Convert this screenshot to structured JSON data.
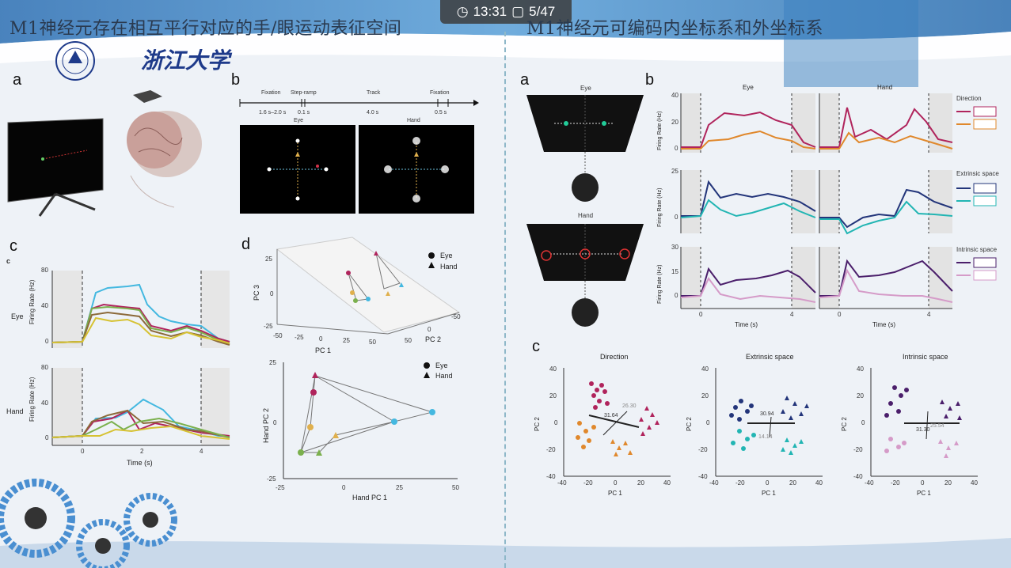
{
  "status_bar": {
    "time": "13:31",
    "page": "5/47"
  },
  "left": {
    "heading": "M1神经元存在相互平行对应的手/眼运动表征空间",
    "panel_a": "a",
    "panel_b": "b",
    "panel_c": "c",
    "panel_c_small": "c",
    "panel_d": "d",
    "timeline": {
      "labels": [
        "Fixation",
        "Step-ramp",
        "Track",
        "Fixation"
      ],
      "durations": [
        "1.6 s–2.0 s",
        "0.1 s",
        "4.0 s",
        "0.5 s"
      ],
      "eye": "Eye",
      "hand": "Hand"
    },
    "plot_eye": {
      "ylabel": "Firing Rate (Hz)",
      "row": "Eye",
      "yticks": [
        "80",
        "40",
        "0"
      ]
    },
    "plot_hand": {
      "ylabel": "Firing Rate (Hz)",
      "row": "Hand",
      "yticks": [
        "80",
        "40",
        "0"
      ],
      "xticks": [
        "0",
        "2",
        "4"
      ],
      "xlabel": "Time (s)"
    },
    "pca3d": {
      "zticks": [
        "25",
        "0",
        "-25"
      ],
      "zlabel": "PC 3",
      "xticks": [
        "-50",
        "-25",
        "0",
        "25",
        "50"
      ],
      "xlabel": "PC 1",
      "yticks": [
        "-50",
        "0",
        "50"
      ],
      "ylabel": "PC 2",
      "legend": [
        "Eye",
        "Hand"
      ]
    },
    "pca2d": {
      "yticks": [
        "25",
        "0",
        "-25"
      ],
      "ylabel": "Hand PC 2",
      "xticks": [
        "-25",
        "0",
        "25",
        "50"
      ],
      "xlabel": "Hand PC 1",
      "legend": [
        "Eye",
        "Hand"
      ]
    }
  },
  "right": {
    "heading": "M1神经元可编码内坐标系和外坐标系",
    "panel_a": "a",
    "panel_b": "b",
    "panel_c": "c",
    "eye_label": "Eye",
    "hand_label": "Hand",
    "col_titles": [
      "Eye",
      "Hand"
    ],
    "rows": [
      {
        "legend": "Direction",
        "ylabel": "Firing Rate (Hz)",
        "yticks": [
          "40",
          "20",
          "0"
        ]
      },
      {
        "legend": "Extrinsic space",
        "ylabel": "Firing Rate (Hz)",
        "yticks": [
          "25",
          "0"
        ]
      },
      {
        "legend": "Intrinsic space",
        "ylabel": "Firing Rate (Hz)",
        "yticks": [
          "30",
          "15",
          "0"
        ]
      }
    ],
    "xticks": [
      "0",
      "4"
    ],
    "xlabel": "Time (s)",
    "scatters": [
      {
        "title": "Direction",
        "d1": "31.64",
        "d2": "26.30"
      },
      {
        "title": "Extrinsic space",
        "d1": "30.94",
        "d2": "14.14"
      },
      {
        "title": "Intrinsic space",
        "d1": "31.30",
        "d2": "25.54"
      }
    ],
    "scatter_yticks": [
      "40",
      "20",
      "0",
      "-20",
      "-40"
    ],
    "scatter_xticks": [
      "-40",
      "-20",
      "0",
      "20",
      "40"
    ],
    "scatter_xlabel": "PC 1",
    "scatter_ylabel": "PC 2"
  },
  "colors": {
    "cyan": "#44b8e0",
    "crimson": "#b0245c",
    "orange": "#e0882c",
    "navy": "#23357a",
    "teal": "#22b5b3",
    "purple": "#4b1f6b",
    "pink": "#d59bc8"
  }
}
